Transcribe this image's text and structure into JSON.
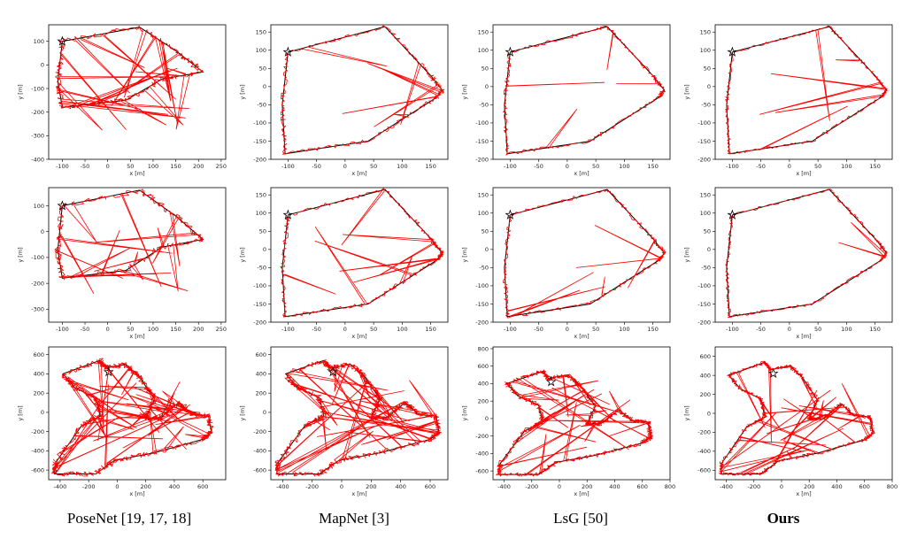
{
  "columns": [
    {
      "caption": "PoseNet [19, 17, 18]",
      "bold": false
    },
    {
      "caption": "MapNet [3]",
      "bold": false
    },
    {
      "caption": "LsG [50]",
      "bold": false
    },
    {
      "caption": "Ours",
      "bold": true
    }
  ],
  "chart_data": [
    {
      "type": "line",
      "method": "PoseNet",
      "row": 1,
      "xlabel": "x [m]",
      "ylabel": "y [m]",
      "xlim": [
        -130,
        260
      ],
      "ylim": [
        -400,
        170
      ],
      "xticks": [
        -100,
        -50,
        0,
        50,
        100,
        150,
        200,
        250
      ],
      "yticks": [
        -400,
        -300,
        -200,
        -100,
        0,
        100
      ],
      "noise": 1.0,
      "extent": "wide"
    },
    {
      "type": "line",
      "method": "MapNet",
      "row": 1,
      "xlabel": "x [m]",
      "ylabel": "y [m]",
      "xlim": [
        -130,
        180
      ],
      "ylim": [
        -200,
        170
      ],
      "xticks": [
        -100,
        -50,
        0,
        50,
        100,
        150
      ],
      "yticks": [
        -200,
        -150,
        -100,
        -50,
        0,
        50,
        100,
        150
      ],
      "noise": 0.6,
      "extent": "std"
    },
    {
      "type": "line",
      "method": "LsG",
      "row": 1,
      "xlabel": "x [m]",
      "ylabel": "y [m]",
      "xlim": [
        -130,
        180
      ],
      "ylim": [
        -200,
        170
      ],
      "xticks": [
        -100,
        -50,
        0,
        50,
        100,
        150
      ],
      "yticks": [
        -200,
        -150,
        -100,
        -50,
        0,
        50,
        100,
        150
      ],
      "noise": 0.5,
      "extent": "std"
    },
    {
      "type": "line",
      "method": "Ours",
      "row": 1,
      "xlabel": "x [m]",
      "ylabel": "y [m]",
      "xlim": [
        -130,
        180
      ],
      "ylim": [
        -200,
        170
      ],
      "xticks": [
        -100,
        -50,
        0,
        50,
        100,
        150
      ],
      "yticks": [
        -200,
        -150,
        -100,
        -50,
        0,
        50,
        100,
        150
      ],
      "noise": 0.3,
      "extent": "std"
    },
    {
      "type": "line",
      "method": "PoseNet",
      "row": 2,
      "xlabel": "x [m]",
      "ylabel": "y [m]",
      "xlim": [
        -130,
        260
      ],
      "ylim": [
        -350,
        170
      ],
      "xticks": [
        -100,
        -50,
        0,
        50,
        100,
        150,
        200,
        250
      ],
      "yticks": [
        -300,
        -200,
        -100,
        0,
        100
      ],
      "noise": 1.0,
      "extent": "wide"
    },
    {
      "type": "line",
      "method": "MapNet",
      "row": 2,
      "xlabel": "x [m]",
      "ylabel": "y [m]",
      "xlim": [
        -130,
        180
      ],
      "ylim": [
        -200,
        170
      ],
      "xticks": [
        -100,
        -50,
        0,
        50,
        100,
        150
      ],
      "yticks": [
        -200,
        -150,
        -100,
        -50,
        0,
        50,
        100,
        150
      ],
      "noise": 0.6,
      "extent": "std"
    },
    {
      "type": "line",
      "method": "LsG",
      "row": 2,
      "xlabel": "x [m]",
      "ylabel": "y [m]",
      "xlim": [
        -130,
        180
      ],
      "ylim": [
        -200,
        170
      ],
      "xticks": [
        -100,
        -50,
        0,
        50,
        100,
        150
      ],
      "yticks": [
        -200,
        -150,
        -100,
        -50,
        0,
        50,
        100,
        150
      ],
      "noise": 0.5,
      "extent": "std"
    },
    {
      "type": "line",
      "method": "Ours",
      "row": 2,
      "xlabel": "x [m]",
      "ylabel": "y [m]",
      "xlim": [
        -130,
        180
      ],
      "ylim": [
        -200,
        170
      ],
      "xticks": [
        -100,
        -50,
        0,
        50,
        100,
        150
      ],
      "yticks": [
        -200,
        -150,
        -100,
        -50,
        0,
        50,
        100,
        150
      ],
      "noise": 0.3,
      "extent": "std"
    },
    {
      "type": "line",
      "method": "PoseNet",
      "row": 3,
      "xlabel": "x [m]",
      "ylabel": "y [m]",
      "xlim": [
        -480,
        760
      ],
      "ylim": [
        -700,
        680
      ],
      "xticks": [
        -400,
        -200,
        0,
        200,
        400,
        600
      ],
      "yticks": [
        -600,
        -400,
        -200,
        0,
        200,
        400,
        600
      ],
      "noise": 1.0,
      "extent": "big"
    },
    {
      "type": "line",
      "method": "MapNet",
      "row": 3,
      "xlabel": "x [m]",
      "ylabel": "y [m]",
      "xlim": [
        -480,
        720
      ],
      "ylim": [
        -700,
        680
      ],
      "xticks": [
        -400,
        -200,
        0,
        200,
        400,
        600
      ],
      "yticks": [
        -600,
        -400,
        -200,
        0,
        200,
        400,
        600
      ],
      "noise": 0.9,
      "extent": "big"
    },
    {
      "type": "line",
      "method": "LsG",
      "row": 3,
      "xlabel": "x [m]",
      "ylabel": "y [m]",
      "xlim": [
        -480,
        800
      ],
      "ylim": [
        -700,
        820
      ],
      "xticks": [
        -400,
        -200,
        0,
        200,
        400,
        600,
        800
      ],
      "yticks": [
        -600,
        -400,
        -200,
        0,
        200,
        400,
        600,
        800
      ],
      "noise": 0.7,
      "extent": "big"
    },
    {
      "type": "line",
      "method": "Ours",
      "row": 3,
      "xlabel": "x [m]",
      "ylabel": "y [m]",
      "xlim": [
        -480,
        800
      ],
      "ylim": [
        -700,
        700
      ],
      "xticks": [
        -400,
        -200,
        0,
        200,
        400,
        600,
        800
      ],
      "yticks": [
        -600,
        -400,
        -200,
        0,
        200,
        400,
        600
      ],
      "noise": 0.5,
      "extent": "big"
    }
  ],
  "colors": {
    "ground_truth": "#000000",
    "prediction": "#ff0000"
  }
}
